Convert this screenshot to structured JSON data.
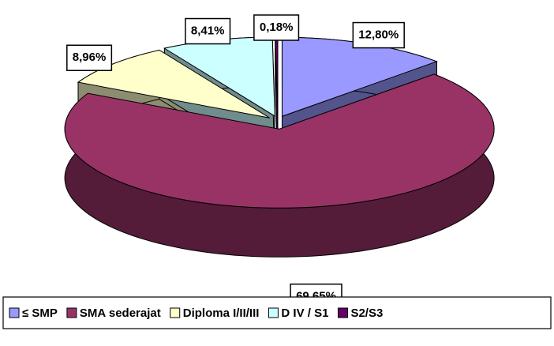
{
  "chart_data": {
    "type": "pie",
    "categories": [
      "≤ SMP",
      "SMA sederajat",
      "Diploma I/II/III",
      "D IV / S1",
      "S2/S3"
    ],
    "values": [
      12.8,
      69.65,
      8.96,
      8.41,
      0.18
    ],
    "value_labels": [
      "12,80%",
      "69,65%",
      "8,96%",
      "8,41%",
      "0,18%"
    ],
    "colors": [
      "#9999ff",
      "#993366",
      "#ffffcc",
      "#ccffff",
      "#660066"
    ],
    "legend": "bottom"
  }
}
